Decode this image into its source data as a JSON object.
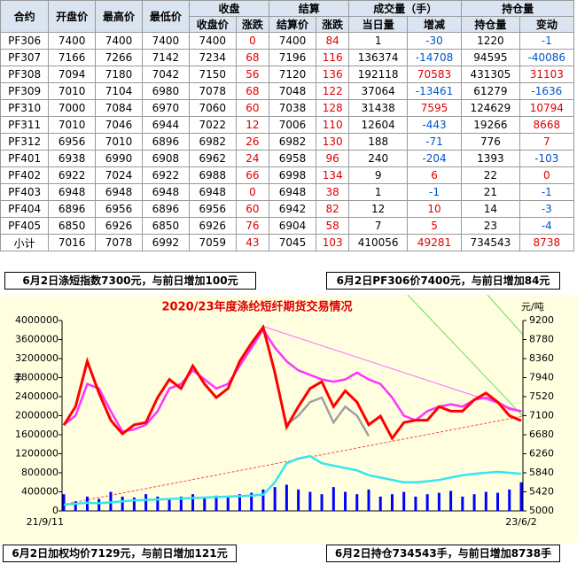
{
  "table": {
    "headers": [
      "合约",
      "开盘价",
      "最高价",
      "最低价"
    ],
    "groups": [
      {
        "label": "收盘",
        "columns": [
          "收盘价",
          "涨跌"
        ]
      },
      {
        "label": "结算",
        "columns": [
          "结算价",
          "涨跌"
        ]
      },
      {
        "label": "成交量（手）",
        "columns": [
          "当日量",
          "增减"
        ]
      },
      {
        "label": "持仓量",
        "columns": [
          "持仓量",
          "变动"
        ]
      }
    ],
    "rows": [
      [
        "PF306",
        7400,
        7400,
        7400,
        7400,
        0,
        7400,
        84,
        1,
        -30,
        1220,
        -1
      ],
      [
        "PF307",
        7166,
        7266,
        7142,
        7234,
        68,
        7196,
        116,
        136374,
        -14708,
        94595,
        -40086
      ],
      [
        "PF308",
        7094,
        7180,
        7042,
        7150,
        56,
        7120,
        136,
        192118,
        70583,
        431305,
        31103
      ],
      [
        "PF309",
        7010,
        7104,
        6980,
        7078,
        68,
        7048,
        122,
        37064,
        -13461,
        61279,
        -1636
      ],
      [
        "PF310",
        7000,
        7084,
        6970,
        7060,
        60,
        7038,
        128,
        31438,
        7595,
        124629,
        10794
      ],
      [
        "PF311",
        7010,
        7046,
        6944,
        7022,
        12,
        7006,
        110,
        12604,
        -443,
        19266,
        8668
      ],
      [
        "PF312",
        6956,
        7010,
        6896,
        6982,
        26,
        6982,
        130,
        188,
        -71,
        776,
        7
      ],
      [
        "PF401",
        6938,
        6990,
        6908,
        6962,
        24,
        6958,
        96,
        240,
        -204,
        1393,
        -103
      ],
      [
        "PF402",
        6922,
        7024,
        6922,
        6988,
        66,
        6998,
        134,
        9,
        6,
        22,
        0
      ],
      [
        "PF403",
        6948,
        6948,
        6948,
        6948,
        0,
        6948,
        38,
        1,
        -1,
        21,
        -1
      ],
      [
        "PF404",
        6896,
        6956,
        6896,
        6956,
        60,
        6942,
        82,
        12,
        10,
        14,
        -3
      ],
      [
        "PF405",
        6850,
        6926,
        6850,
        6926,
        76,
        6904,
        58,
        7,
        5,
        23,
        -4
      ],
      [
        "小计",
        7016,
        7078,
        6992,
        7059,
        43,
        7045,
        103,
        410056,
        49281,
        734543,
        8738
      ]
    ]
  },
  "banners": {
    "top_left": "6月2日涤短指数7300元，与前日增加100元",
    "top_right": "6月2日PF306价7400元，与前日增加84元",
    "bottom_left": "6月2日加权均价7129元，与前日增加121元",
    "bottom_right": "6月2日持仓734543手，与前日增加8738手"
  },
  "chart_data": {
    "type": "combo",
    "title": "2020/23年度涤纶短纤期货交易情况",
    "y_label": "手",
    "y2_label": "元/吨",
    "categories": [
      "21/9/11",
      null,
      null,
      null,
      null,
      null,
      null,
      null,
      null,
      null,
      null,
      null,
      null,
      null,
      null,
      null,
      null,
      null,
      null,
      null,
      null,
      null,
      null,
      null,
      null,
      null,
      null,
      null,
      null,
      null,
      null,
      null,
      null,
      null,
      null,
      null,
      null,
      null,
      null,
      "23/6/2"
    ],
    "ylim": [
      0,
      4000000
    ],
    "yticks": [
      0,
      400000,
      800000,
      1200000,
      1600000,
      2000000,
      2400000,
      2800000,
      3200000,
      3600000,
      4000000
    ],
    "y2lim": [
      5000,
      9200
    ],
    "y2ticks": [
      5000,
      5420,
      5840,
      6260,
      6680,
      7100,
      7520,
      7940,
      8360,
      8780,
      9200
    ],
    "series": [
      {
        "kind": "bar",
        "color": "#0000ff",
        "values": [
          350000,
          200000,
          300000,
          250000,
          400000,
          300000,
          280000,
          350000,
          300000,
          250000,
          300000,
          350000,
          280000,
          320000,
          300000,
          350000,
          380000,
          450000,
          500000,
          550000,
          450000,
          400000,
          350000,
          500000,
          400000,
          350000,
          450000,
          300000,
          350000,
          400000,
          300000,
          350000,
          380000,
          420000,
          300000,
          350000,
          400000,
          380000,
          450000,
          600000
        ]
      },
      {
        "kind": "line",
        "color": "#33e6f0",
        "values": [
          130000,
          150000,
          170000,
          160000,
          180000,
          200000,
          220000,
          230000,
          240000,
          250000,
          260000,
          270000,
          280000,
          290000,
          300000,
          310000,
          320000,
          340000,
          600000,
          1000000,
          1100000,
          1150000,
          1000000,
          950000,
          900000,
          850000,
          750000,
          700000,
          650000,
          600000,
          600000,
          620000,
          650000,
          700000,
          750000,
          780000,
          800000,
          820000,
          800000,
          780000
        ]
      },
      {
        "kind": "line",
        "axis": "y2",
        "color": "#ff33ff",
        "values": [
          6900,
          7100,
          7800,
          7700,
          7200,
          6750,
          6800,
          6900,
          7200,
          7700,
          7800,
          8100,
          7900,
          7700,
          7800,
          8200,
          8600,
          9000,
          8600,
          8300,
          8100,
          8000,
          7900,
          7850,
          7900,
          8050,
          7900,
          7800,
          7500,
          7100,
          7000,
          7200,
          7300,
          7350,
          7300,
          7450,
          7500,
          7400,
          7250,
          7200
        ]
      },
      {
        "kind": "line",
        "axis": "y2",
        "color": "#a0a0a0",
        "values": [
          null,
          null,
          null,
          null,
          null,
          null,
          null,
          null,
          null,
          null,
          null,
          null,
          null,
          null,
          null,
          null,
          null,
          null,
          8000,
          6900,
          7100,
          7400,
          7500,
          6950,
          7300,
          7100,
          6650,
          null,
          null,
          null,
          null,
          null,
          null,
          null,
          null,
          null,
          null,
          null,
          null,
          null
        ]
      },
      {
        "kind": "line",
        "axis": "y2",
        "color": "#ff0000",
        "values": [
          6890,
          7300,
          8300,
          7600,
          7000,
          6700,
          6900,
          6950,
          7500,
          7900,
          7700,
          8200,
          7800,
          7500,
          7700,
          8300,
          8700,
          9050,
          8050,
          6850,
          7300,
          7700,
          7850,
          7300,
          7650,
          7400,
          6900,
          7090,
          6600,
          6950,
          7000,
          7000,
          7300,
          7200,
          7200,
          7450,
          7600,
          7400,
          7100,
          6990
        ]
      }
    ]
  }
}
